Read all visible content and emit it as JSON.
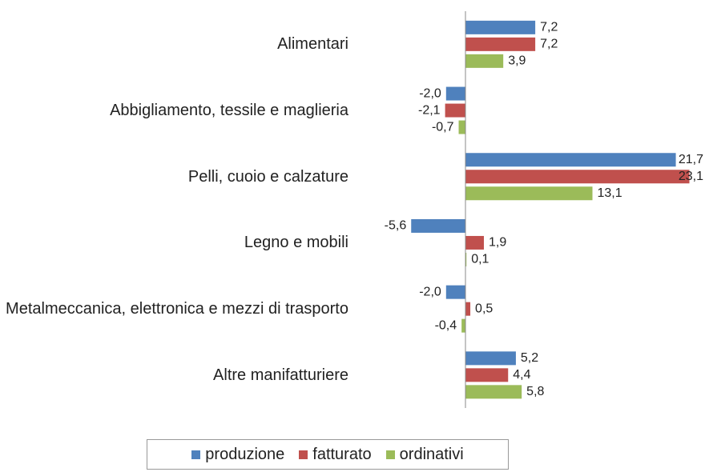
{
  "chart_data": {
    "type": "hbar",
    "categories": [
      "Alimentari",
      "Abbigliamento, tessile e maglieria",
      "Pelli, cuoio e calzature",
      "Legno e mobili",
      "Metalmeccanica, elettronica e mezzi di trasporto",
      "Altre manifatturiere"
    ],
    "series": [
      {
        "name": "produzione",
        "color": "#4f81bd",
        "values": [
          7.2,
          -2.0,
          21.7,
          -5.6,
          -2.0,
          5.2
        ],
        "value_labels": [
          "7,2",
          "-2,0",
          "21,7",
          "-5,6",
          "-2,0",
          "5,2"
        ]
      },
      {
        "name": "fatturato",
        "color": "#c0504d",
        "values": [
          7.2,
          -2.1,
          23.1,
          1.9,
          0.5,
          4.4
        ],
        "value_labels": [
          "7,2",
          "-2,1",
          "23,1",
          "1,9",
          "0,5",
          "4,4"
        ]
      },
      {
        "name": "ordinativi",
        "color": "#9bbb59",
        "values": [
          3.9,
          -0.7,
          13.1,
          0.1,
          -0.4,
          5.8
        ],
        "value_labels": [
          "3,9",
          "-0,7",
          "13,1",
          "0,1",
          "-0,4",
          "5,8"
        ]
      }
    ],
    "xlim": [
      -6,
      24
    ],
    "legend": "bottom"
  }
}
